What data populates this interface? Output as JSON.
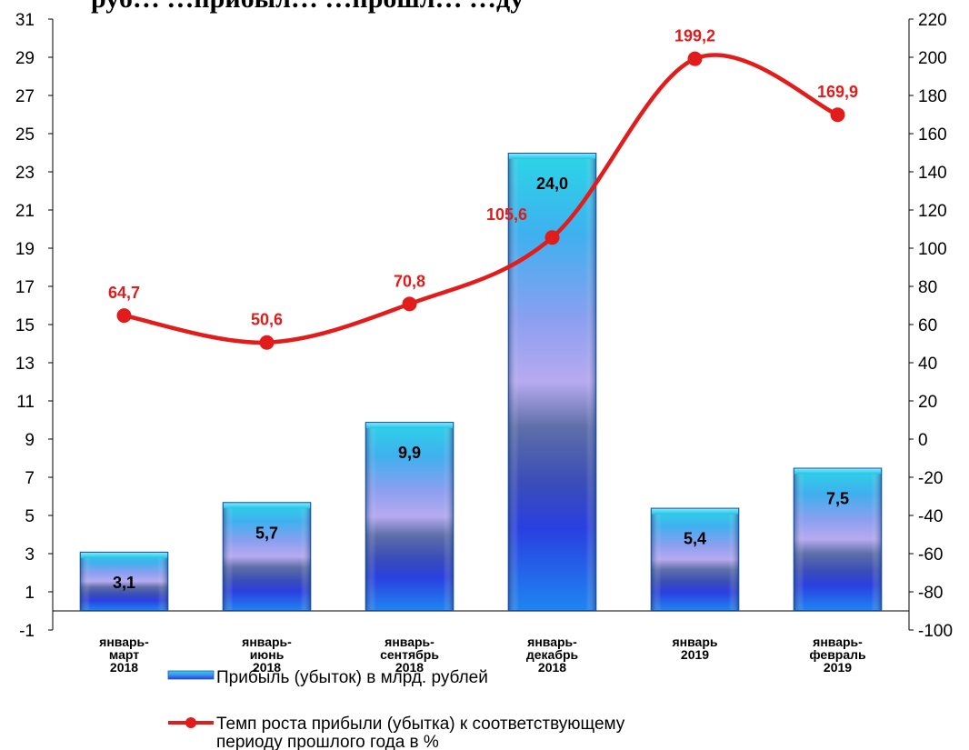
{
  "chart_data": {
    "type": "bar",
    "title": "                                                     ",
    "title_visible": "руб… …прибыл… …прошл… …ду",
    "categories": [
      [
        "январь-",
        "март",
        "2018"
      ],
      [
        "январь-",
        "июнь",
        "2018"
      ],
      [
        "январь-",
        "сентябрь",
        "2018"
      ],
      [
        "январь-",
        "декабрь",
        "2018"
      ],
      [
        "январь",
        "2019"
      ],
      [
        "январь-",
        "февраль",
        "2019"
      ]
    ],
    "series": [
      {
        "name": "Прибыль (убыток) в млрд. рублей",
        "type": "bar",
        "axis": "left",
        "values": [
          3.1,
          5.7,
          9.9,
          24.0,
          5.4,
          7.5
        ],
        "labels": [
          "3,1",
          "5,7",
          "9,9",
          "24,0",
          "5,4",
          "7,5"
        ],
        "color": "#2a7de0"
      },
      {
        "name": "Темп роста прибыли (убытка) к соответствующему периоду прошлого года в %",
        "type": "line",
        "axis": "right",
        "values": [
          64.7,
          50.6,
          70.8,
          105.6,
          199.2,
          169.9
        ],
        "labels": [
          "64,7",
          "50,6",
          "70,8",
          "105,6",
          "199,2",
          "169,9"
        ],
        "color": "#e21b1b"
      }
    ],
    "y_left": {
      "min": -1,
      "max": 31,
      "step": 2
    },
    "y_right": {
      "min": -100,
      "max": 220,
      "step": 20
    },
    "legend_position": "bottom",
    "legend": [
      "Прибыль (убыток) в млрд. рублей",
      "Темп роста прибыли (убытка) к соответствующему",
      "периоду прошлого года в %"
    ]
  }
}
